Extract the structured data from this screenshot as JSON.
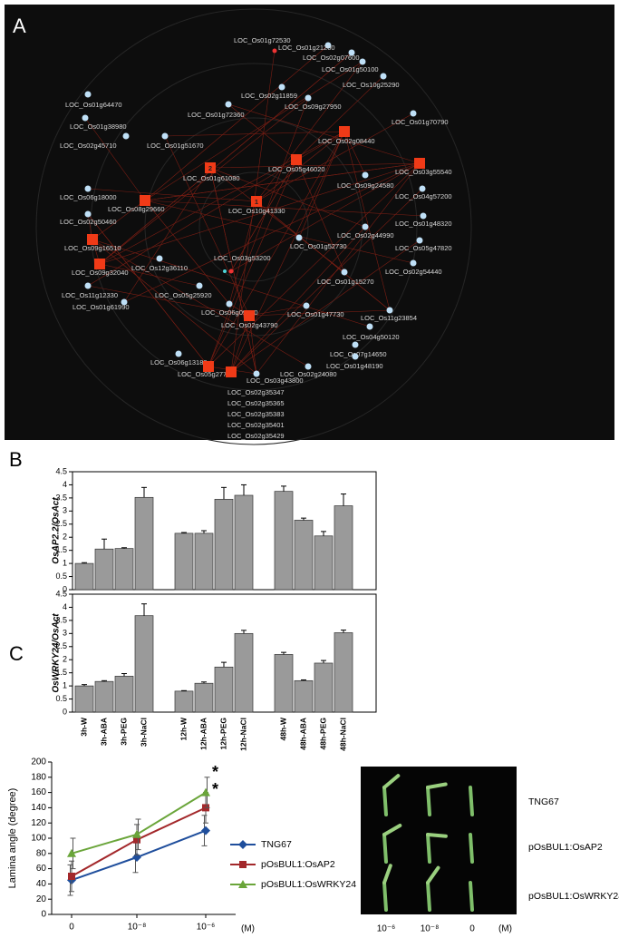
{
  "panel_labels": [
    "A",
    "B",
    "C"
  ],
  "network": {
    "nodes": [
      {
        "label": "LOC_Os01g72530"
      },
      {
        "label": "LOC_Os01g21200"
      },
      {
        "label": "LOC_Os02g07600"
      },
      {
        "label": "LOC_Os01g50100"
      },
      {
        "label": "LOC_Os10g25290"
      },
      {
        "label": "LOC_Os02g11859"
      },
      {
        "label": "LOC_Os09g27950"
      },
      {
        "label": "LOC_Os01g64470"
      },
      {
        "label": "LOC_Os01g72360"
      },
      {
        "label": "LOC_Os01g38980"
      },
      {
        "label": "LOC_Os02g08440"
      },
      {
        "label": "LOC_Os01g70790"
      },
      {
        "label": "LOC_Os02g45710"
      },
      {
        "label": "LOC_Os01g51670"
      },
      {
        "label": "LOC_Os03g55540"
      },
      {
        "label": "LOC_Os01g61080",
        "number": "2"
      },
      {
        "label": "LOC_Os05g46020"
      },
      {
        "label": "LOC_Os09g24580"
      },
      {
        "label": "LOC_Os04g57200"
      },
      {
        "label": "LOC_Os06g18000"
      },
      {
        "label": "LOC_Os08g29660"
      },
      {
        "label": "LOC_Os10g41330",
        "number": "1"
      },
      {
        "label": "LOC_Os02g50460"
      },
      {
        "label": "LOC_Os01g48320"
      },
      {
        "label": "LOC_Os02g44990"
      },
      {
        "label": "LOC_Os09g16510"
      },
      {
        "label": "LOC_Os05g47820"
      },
      {
        "label": "LOC_Os01g52730"
      },
      {
        "label": "LOC_Os03g53200"
      },
      {
        "label": "LOC_Os12g36110"
      },
      {
        "label": "LOC_Os09g32040"
      },
      {
        "label": "LOC_Os02g54440"
      },
      {
        "label": "LOC_Os01g15270"
      },
      {
        "label": "LOC_Os11g12330"
      },
      {
        "label": "LOC_Os05g25920"
      },
      {
        "label": "LOC_Os06g09310"
      },
      {
        "label": "LOC_Os01g61990"
      },
      {
        "label": "LOC_Os01g47730"
      },
      {
        "label": "LOC_Os02g43790"
      },
      {
        "label": "LOC_Os11g23854"
      },
      {
        "label": "LOC_Os04g50120"
      },
      {
        "label": "LOC_Os07g14650"
      },
      {
        "label": "LOC_Os06g13180"
      },
      {
        "label": "LOC_Os01g48190"
      },
      {
        "label": "LOC_Os05g27730"
      },
      {
        "label": "LOC_Os03g43800"
      },
      {
        "label": "LOC_Os02g24080"
      },
      {
        "label": "LOC_Os02g35347"
      },
      {
        "label": "LOC_Os02g35365"
      },
      {
        "label": "LOC_Os02g35383"
      },
      {
        "label": "LOC_Os02g35401"
      },
      {
        "label": "LOC_Os02g35429"
      }
    ]
  },
  "chart_data": [
    {
      "type": "bar",
      "y_label": "OsAP2.2/OsAct",
      "color": "#9a9a9a",
      "categories": [
        null,
        null,
        null,
        null,
        null,
        null,
        null,
        null,
        null,
        null,
        null,
        null
      ],
      "values": [
        1.0,
        1.55,
        1.57,
        3.52,
        2.15,
        2.15,
        3.45,
        3.6,
        3.75,
        2.65,
        2.05,
        3.2
      ],
      "errors": [
        0.03,
        0.38,
        0.03,
        0.38,
        0.03,
        0.1,
        0.45,
        0.4,
        0.2,
        0.08,
        0.17,
        0.45
      ],
      "ylim": [
        0,
        4.5
      ],
      "yticks": [
        0,
        0.5,
        1,
        1.5,
        2,
        2.5,
        3,
        3.5,
        4,
        4.5
      ]
    },
    {
      "type": "bar",
      "y_label": "OsWRKY24/OsAct",
      "color": "#9a9a9a",
      "categories": [
        "3h-W",
        "3h-ABA",
        "3h-PEG",
        "3h-NaCl",
        "12h-W",
        "12h-ABA",
        "12h-PEG",
        "12h-NaCl",
        "48h-W",
        "48h-ABA",
        "48h-PEG",
        "48h-NaCl"
      ],
      "values": [
        1.0,
        1.17,
        1.37,
        3.68,
        0.8,
        1.1,
        1.72,
        3.0,
        2.2,
        1.2,
        1.87,
        3.03
      ],
      "errors": [
        0.05,
        0.03,
        0.1,
        0.45,
        0.02,
        0.05,
        0.18,
        0.12,
        0.08,
        0.03,
        0.1,
        0.1
      ],
      "ylim": [
        0,
        4.5
      ],
      "yticks": [
        0,
        0.5,
        1,
        1.5,
        2,
        2.5,
        3,
        3.5,
        4,
        4.5
      ]
    },
    {
      "type": "line",
      "y_label": "Lamina angle (degree)",
      "categories": [
        "0",
        "10⁻⁸",
        "10⁻⁶"
      ],
      "x_unit": "(M)",
      "series": [
        {
          "name": "TNG67",
          "color": "#1f4e9c",
          "values": [
            45,
            75,
            110
          ],
          "errors": [
            20,
            20,
            20
          ]
        },
        {
          "name": "pOsBUL1:OsAP2",
          "color": "#a3282b",
          "values": [
            50,
            98,
            140
          ],
          "errors": [
            20,
            20,
            20
          ]
        },
        {
          "name": "pOsBUL1:OsWRKY24",
          "color": "#6aa53a",
          "values": [
            80,
            105,
            160
          ],
          "errors": [
            20,
            20,
            20
          ]
        }
      ],
      "annotations": [
        "*",
        "*"
      ],
      "ylim": [
        0,
        200
      ],
      "yticks": [
        0,
        20,
        40,
        60,
        80,
        100,
        120,
        140,
        160,
        180,
        200
      ]
    }
  ],
  "photo": {
    "row_labels": [
      "TNG67",
      "pOsBUL1:OsAP2",
      "pOsBUL1:OsWRKY24"
    ],
    "column_labels": [
      "10⁻⁶",
      "10⁻⁸",
      "0"
    ],
    "unit": "(M)"
  }
}
